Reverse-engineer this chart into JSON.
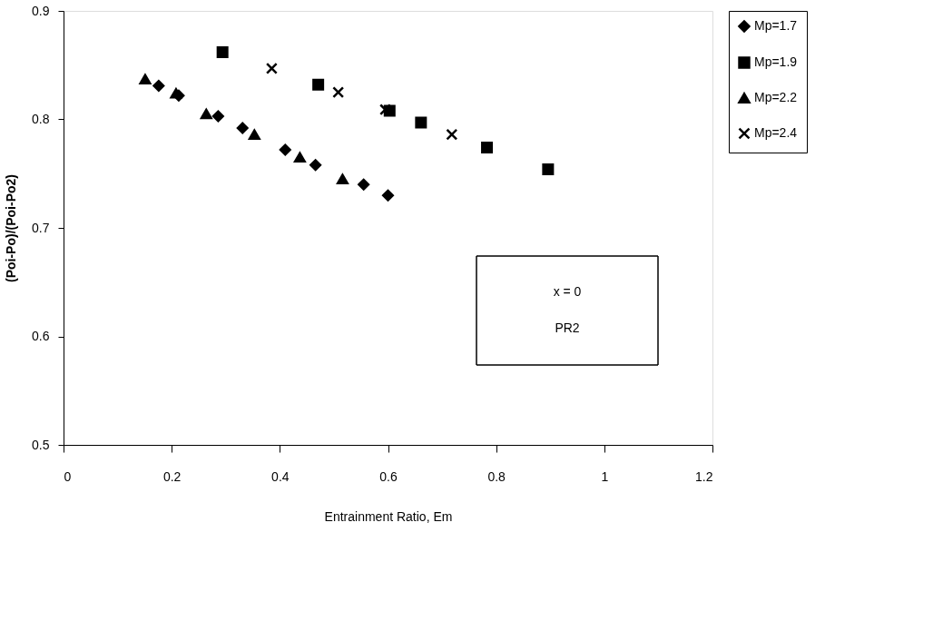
{
  "chart_data": {
    "type": "scatter",
    "xlabel": "Entrainment Ratio, Em",
    "ylabel": "(Poi-Po)/(Poi-Po2)",
    "xlim": [
      0,
      1.2
    ],
    "xticks": [
      0,
      0.2,
      0.4,
      0.6,
      0.8,
      1,
      1.2
    ],
    "ylim": [
      0.5,
      0.9
    ],
    "yticks": [
      0.5,
      0.6,
      0.7,
      0.8,
      0.9
    ],
    "grid": false,
    "legend": "right",
    "series": [
      {
        "name": "Mp=1.7",
        "color": "#000000",
        "marker": "diamond",
        "x": [
          0.176,
          0.213,
          0.286,
          0.331,
          0.41,
          0.466,
          0.555,
          0.6
        ],
        "values": [
          0.831,
          0.822,
          0.803,
          0.792,
          0.772,
          0.758,
          0.74,
          0.73
        ]
      },
      {
        "name": "Mp=1.9",
        "color": "#000000",
        "marker": "square",
        "x": [
          0.294,
          0.471,
          0.603,
          0.661,
          0.783,
          0.896
        ],
        "values": [
          0.862,
          0.832,
          0.808,
          0.797,
          0.774,
          0.754
        ]
      },
      {
        "name": "Mp=2.2",
        "color": "#000000",
        "marker": "triangle",
        "x": [
          0.151,
          0.208,
          0.264,
          0.353,
          0.437,
          0.516
        ],
        "values": [
          0.837,
          0.824,
          0.805,
          0.786,
          0.765,
          0.745
        ]
      },
      {
        "name": "Mp=2.4",
        "color": "#000000",
        "marker": "cross",
        "x": [
          0.385,
          0.508,
          0.595,
          0.718
        ],
        "values": [
          0.847,
          0.825,
          0.809,
          0.786
        ]
      }
    ],
    "annotations": [
      "x = 0",
      "PR2"
    ]
  }
}
